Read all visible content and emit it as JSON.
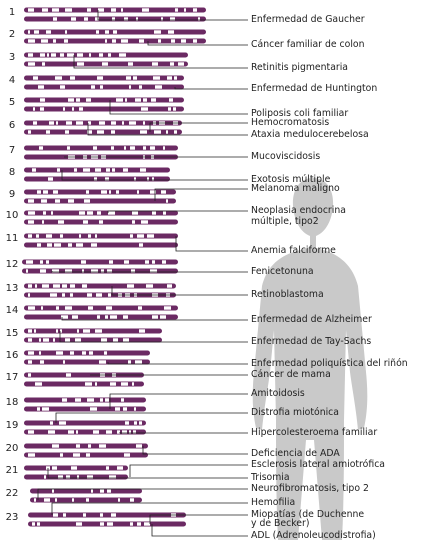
{
  "chromosome_numbers": [
    "1",
    "2",
    "3",
    "4",
    "5",
    "6",
    "7",
    "8",
    "9",
    "10",
    "11",
    "12",
    "13",
    "14",
    "15",
    "16",
    "17",
    "18",
    "19",
    "20",
    "21",
    "22",
    "23"
  ],
  "diseases": [
    {
      "label": "Enfermedad de Gaucher",
      "chrom": "1"
    },
    {
      "label": "Cáncer familiar de colon",
      "chrom": "2"
    },
    {
      "label": "Retinitis pigmentaria",
      "chrom": "3"
    },
    {
      "label": "Enfermedad de Huntington",
      "chrom": "4"
    },
    {
      "label": "Poliposis coli familiar",
      "chrom": "5"
    },
    {
      "label": "Hemocromatosis",
      "chrom": "6"
    },
    {
      "label": "Ataxia medulocerebelosa",
      "chrom": "6"
    },
    {
      "label": "Mucoviscidosis",
      "chrom": "7"
    },
    {
      "label": "Exotosis múltiple",
      "chrom": "8"
    },
    {
      "label": "Melanoma maligno",
      "chrom": "9"
    },
    {
      "label": "Neoplasia endocrina",
      "chrom": "10"
    },
    {
      "label": "múltiple, tipo2",
      "chrom": "10"
    },
    {
      "label": "Anemia falciforme",
      "chrom": "11"
    },
    {
      "label": "Fenicetonuna",
      "chrom": "12"
    },
    {
      "label": "Retinoblastoma",
      "chrom": "13"
    },
    {
      "label": "Enfermedad de Alzheimer",
      "chrom": "14"
    },
    {
      "label": "Enfermedad de Tay-Sachs",
      "chrom": "15"
    },
    {
      "label": "Enfermedad poliquística del riñón",
      "chrom": "16"
    },
    {
      "label": "Cáncer de mama",
      "chrom": "17"
    },
    {
      "label": "Amitoidosis",
      "chrom": "18"
    },
    {
      "label": "Distrofia miotónica",
      "chrom": "19"
    },
    {
      "label": "Hipercolesteroema familiar",
      "chrom": "19"
    },
    {
      "label": "Deficiencia de ADA",
      "chrom": "20"
    },
    {
      "label": "Esclerosis lateral amiotrófica",
      "chrom": "21"
    },
    {
      "label": "Trisomia",
      "chrom": "21"
    },
    {
      "label": "Neurofibromatosis, tipo 2",
      "chrom": "22"
    },
    {
      "label": "Hemofilia",
      "chrom": "23"
    },
    {
      "label": "Miopatías (de Duchenne",
      "chrom": "23"
    },
    {
      "label": "y de Becker)",
      "chrom": "23"
    },
    {
      "label": "ADL (Adrenoleucodistrofia)",
      "chrom": "23"
    }
  ],
  "colors": {
    "chromosome": "#6b2a63",
    "band_light": "#ffffff",
    "silhouette": "#c9c9c9",
    "leader_line": "#222222",
    "text": "#222222"
  }
}
